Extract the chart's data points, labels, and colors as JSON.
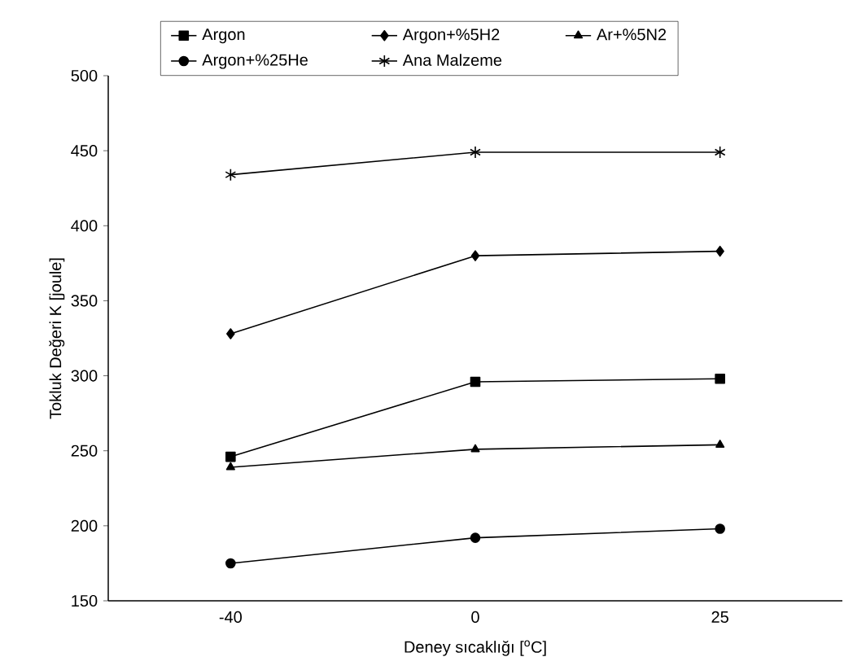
{
  "chart_data": {
    "type": "line",
    "xlabel": "Deney sıcaklığı   [$^{o}$C]",
    "ylabel": "Tokluk Değeri K [joule]",
    "categories": [
      "-40",
      "0",
      "25"
    ],
    "ylim": [
      150,
      500
    ],
    "yticks": [
      150,
      200,
      250,
      300,
      350,
      400,
      450,
      500
    ],
    "grid": false,
    "legend": "top",
    "line_style": "solid",
    "series": [
      {
        "name": "Argon",
        "color": "#000000",
        "marker": "square",
        "values": [
          246,
          296,
          298
        ]
      },
      {
        "name": "Argon+%5H2",
        "color": "#000000",
        "marker": "diamond",
        "values": [
          328,
          380,
          383
        ]
      },
      {
        "name": "Ar+%5N2",
        "color": "#000000",
        "marker": "triangle",
        "values": [
          239,
          251,
          254
        ]
      },
      {
        "name": "Argon+%25He",
        "color": "#000000",
        "marker": "circle",
        "values": [
          175,
          192,
          198
        ]
      },
      {
        "name": "Ana Malzeme",
        "color": "#000000",
        "marker": "cross",
        "values": [
          434,
          449,
          449
        ]
      }
    ]
  }
}
